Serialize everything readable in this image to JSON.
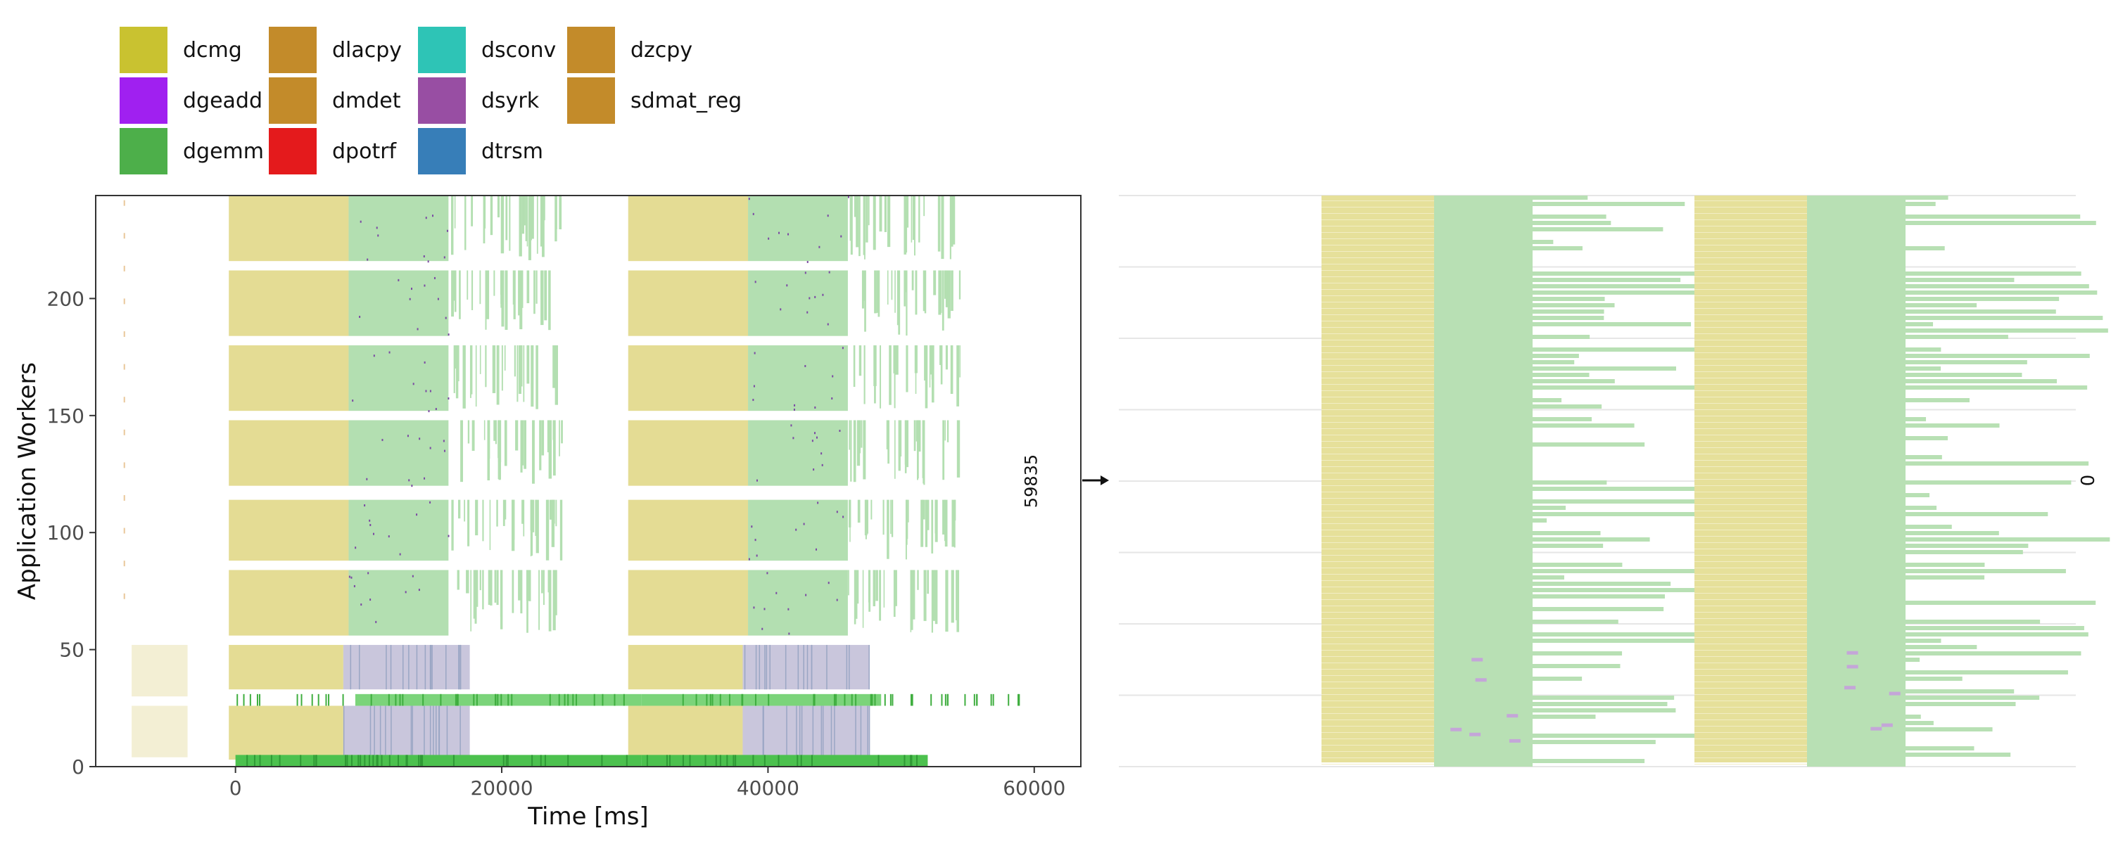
{
  "chart_data": [
    {
      "type": "scatter",
      "title": "",
      "xlabel": "Time [ms]",
      "ylabel": "Application Workers",
      "xlim": [
        -10500,
        63500
      ],
      "ylim": [
        0,
        244
      ],
      "x_ticks": [
        0,
        20000,
        40000,
        60000
      ],
      "y_ticks": [
        0,
        50,
        100,
        150,
        200
      ],
      "grid": false,
      "legend_position": "top",
      "annotations": [
        {
          "text": "59835",
          "x": 60200,
          "y": 122
        }
      ],
      "legend": [
        {
          "name": "dcmg",
          "color": "#c9c230"
        },
        {
          "name": "dgeadd",
          "color": "#a020f0"
        },
        {
          "name": "dgemm",
          "color": "#4daf4a"
        },
        {
          "name": "dlacpy",
          "color": "#c38b2a"
        },
        {
          "name": "dmdet",
          "color": "#c38b2a"
        },
        {
          "name": "dpotrf",
          "color": "#e41a1c"
        },
        {
          "name": "dsconv",
          "color": "#2ec4b6"
        },
        {
          "name": "dsyrk",
          "color": "#984ea3"
        },
        {
          "name": "dtrsm",
          "color": "#377eb8"
        },
        {
          "name": "dzcpy",
          "color": "#c38b2a"
        },
        {
          "name": "sdmat_reg",
          "color": "#c38b2a"
        }
      ],
      "series": [
        {
          "name": "dcmg",
          "blocks": [
            {
              "x": [
                -7800,
                -3600
              ],
              "y": [
                0,
                52
              ]
            },
            {
              "x": [
                -500,
                8700
              ],
              "y": [
                0,
                244
              ]
            },
            {
              "x": [
                29500,
                38700
              ],
              "y": [
                0,
                244
              ]
            }
          ]
        },
        {
          "name": "dgemm",
          "blocks": [
            {
              "x": [
                8700,
                16500
              ],
              "y": [
                55,
                244
              ]
            },
            {
              "x": [
                38700,
                46500
              ],
              "y": [
                55,
                244
              ]
            },
            {
              "x": [
                0,
                52000
              ],
              "y": [
                0,
                6
              ]
            },
            {
              "x": [
                0,
                60000
              ],
              "y": [
                26,
                33
              ]
            }
          ]
        },
        {
          "name": "dtrsm",
          "blocks": [
            {
              "x": [
                8700,
                19200
              ],
              "y": [
                4,
                52
              ]
            },
            {
              "x": [
                39000,
                49000
              ],
              "y": [
                4,
                52
              ]
            }
          ]
        }
      ]
    },
    {
      "type": "scatter",
      "title": "",
      "xlabel": "",
      "ylabel": "",
      "annotations": [
        {
          "text": "0"
        }
      ]
    }
  ]
}
